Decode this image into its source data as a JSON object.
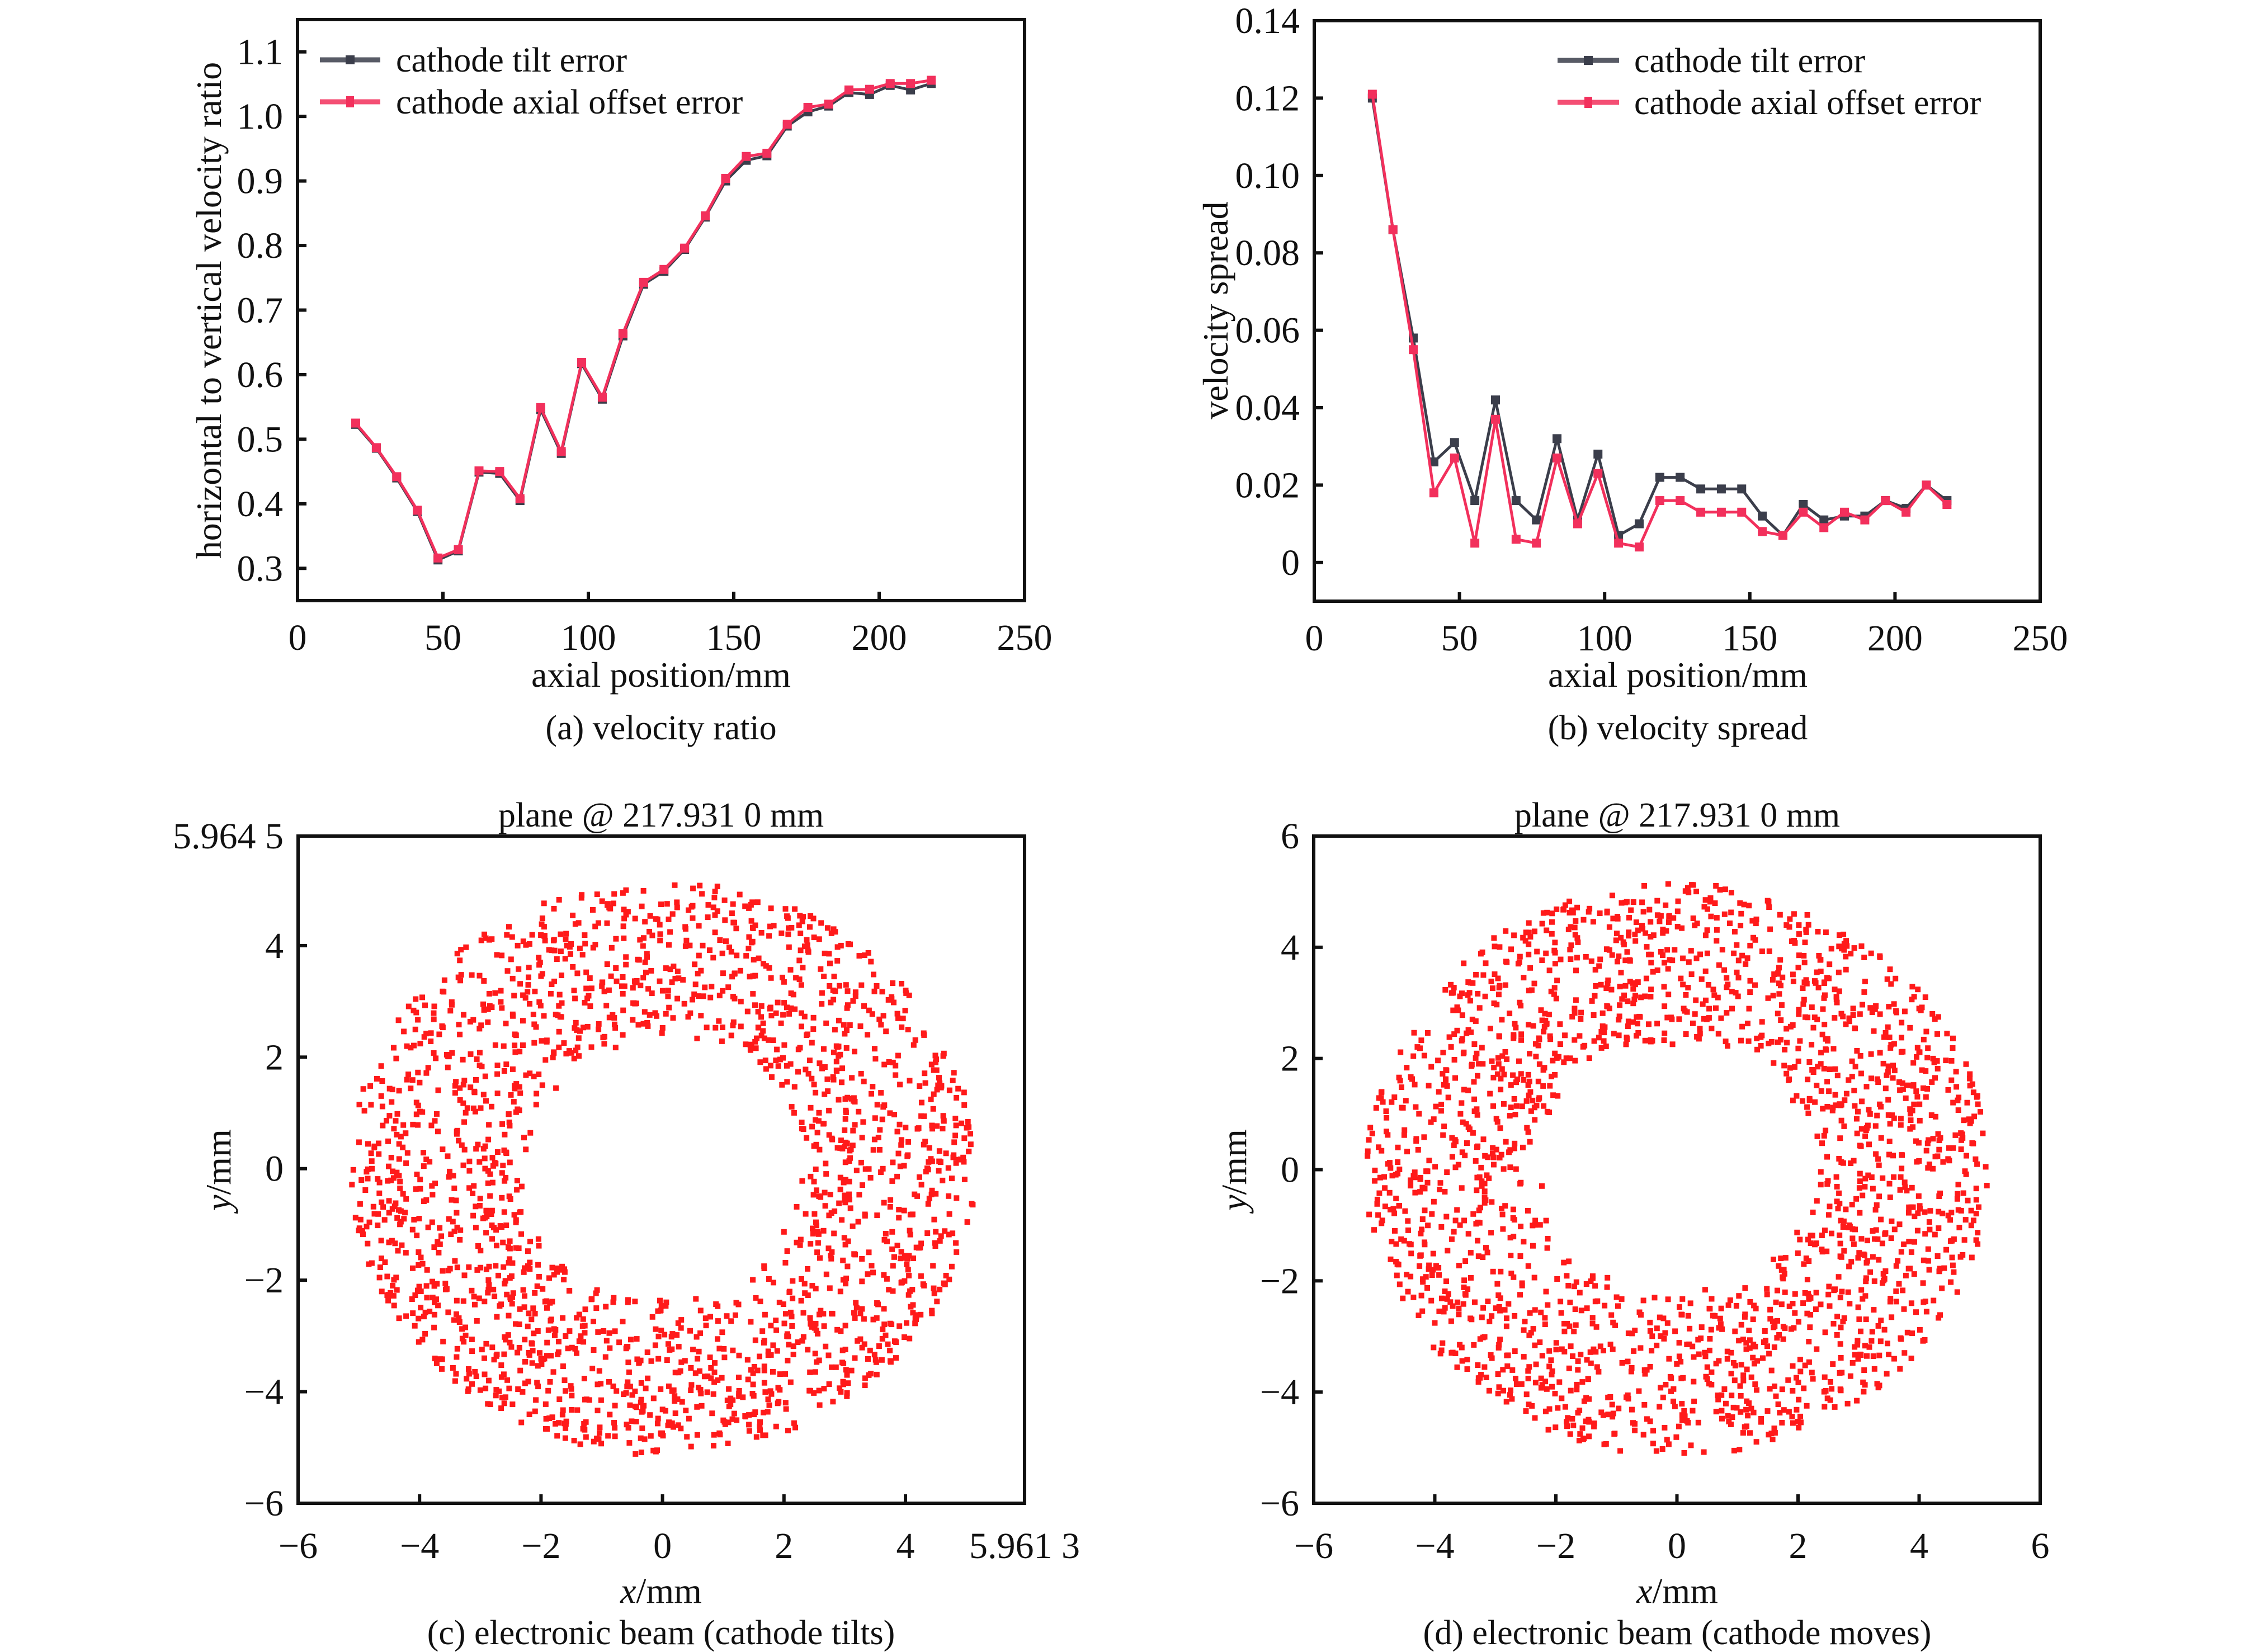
{
  "colors": {
    "tilt": "#3b3e4b",
    "offset": "#f2305c",
    "scatter": "#ff1a1a",
    "axis": "#111111"
  },
  "chart_data": [
    {
      "id": "a",
      "type": "line",
      "caption": "(a) velocity ratio",
      "title": "",
      "xlabel": "axial position/mm",
      "ylabel": "horizontal to vertical velocity ratio",
      "xlim": [
        0,
        250
      ],
      "ylim": [
        0.25,
        1.15
      ],
      "xticks": [
        0,
        50,
        100,
        150,
        200,
        250
      ],
      "xtick_labels": [
        "0",
        "50",
        "100",
        "150",
        "200",
        "250"
      ],
      "yticks": [
        0.3,
        0.4,
        0.5,
        0.6,
        0.7,
        0.8,
        0.9,
        1.0,
        1.1
      ],
      "ytick_labels": [
        "0.3",
        "0.4",
        "0.5",
        "0.6",
        "0.7",
        "0.8",
        "0.9",
        "1.0",
        "1.1"
      ],
      "grid": false,
      "legend_position": "top-left",
      "x": [
        20,
        27.1,
        34.1,
        41.2,
        48.3,
        55.3,
        62.4,
        69.5,
        76.5,
        83.6,
        90.7,
        97.7,
        104.8,
        111.9,
        119.0,
        126.0,
        133.1,
        140.2,
        147.2,
        154.3,
        161.4,
        168.4,
        175.5,
        182.6,
        189.6,
        196.7,
        203.8,
        210.8,
        217.9
      ],
      "series": [
        {
          "name": "cathode tilt error",
          "color_key": "tilt",
          "values": [
            0.523,
            0.486,
            0.44,
            0.388,
            0.313,
            0.327,
            0.449,
            0.447,
            0.405,
            0.546,
            0.478,
            0.617,
            0.562,
            0.66,
            0.74,
            0.76,
            0.794,
            0.844,
            0.9,
            0.932,
            0.939,
            0.985,
            1.007,
            1.016,
            1.037,
            1.034,
            1.048,
            1.041,
            1.051
          ]
        },
        {
          "name": "cathode axial offset error",
          "color_key": "offset",
          "values": [
            0.525,
            0.487,
            0.442,
            0.39,
            0.316,
            0.329,
            0.451,
            0.45,
            0.408,
            0.549,
            0.481,
            0.619,
            0.565,
            0.664,
            0.743,
            0.763,
            0.796,
            0.846,
            0.904,
            0.938,
            0.943,
            0.988,
            1.014,
            1.019,
            1.041,
            1.042,
            1.051,
            1.051,
            1.056
          ]
        }
      ]
    },
    {
      "id": "b",
      "type": "line",
      "caption": "(b) velocity spread",
      "title": "",
      "xlabel": "axial position/mm",
      "ylabel": "velocity spread",
      "xlim": [
        0,
        250
      ],
      "ylim": [
        -0.01,
        0.14
      ],
      "xticks": [
        0,
        50,
        100,
        150,
        200,
        250
      ],
      "xtick_labels": [
        "0",
        "50",
        "100",
        "150",
        "200",
        "250"
      ],
      "yticks": [
        0,
        0.02,
        0.04,
        0.06,
        0.08,
        0.1,
        0.12,
        0.14
      ],
      "ytick_labels": [
        "0",
        "0.02",
        "0.04",
        "0.06",
        "0.08",
        "0.10",
        "0.12",
        "0.14"
      ],
      "grid": false,
      "legend_position": "top-right",
      "x": [
        20,
        27.1,
        34.1,
        41.2,
        48.3,
        55.3,
        62.4,
        69.5,
        76.5,
        83.6,
        90.7,
        97.7,
        104.8,
        111.9,
        119.0,
        126.0,
        133.1,
        140.2,
        147.2,
        154.3,
        161.4,
        168.4,
        175.5,
        182.6,
        189.6,
        196.7,
        203.8,
        210.8,
        217.9
      ],
      "series": [
        {
          "name": "cathode tilt error",
          "color_key": "tilt",
          "values": [
            0.12,
            0.086,
            0.058,
            0.026,
            0.031,
            0.016,
            0.042,
            0.016,
            0.011,
            0.032,
            0.011,
            0.028,
            0.007,
            0.01,
            0.022,
            0.022,
            0.019,
            0.019,
            0.019,
            0.012,
            0.007,
            0.015,
            0.011,
            0.012,
            0.012,
            0.016,
            0.014,
            0.02,
            0.016
          ]
        },
        {
          "name": "cathode axial offset error",
          "color_key": "offset",
          "values": [
            0.121,
            0.086,
            0.055,
            0.018,
            0.027,
            0.005,
            0.037,
            0.006,
            0.005,
            0.027,
            0.01,
            0.023,
            0.005,
            0.004,
            0.016,
            0.016,
            0.013,
            0.013,
            0.013,
            0.008,
            0.007,
            0.013,
            0.009,
            0.013,
            0.011,
            0.016,
            0.013,
            0.02,
            0.015
          ]
        }
      ]
    },
    {
      "id": "c",
      "type": "scatter",
      "caption": "(c) electronic beam (cathode tilts)",
      "title": "plane @ 217.931 0 mm",
      "xlabel_italic": "x",
      "xlabel_rest": "/mm",
      "ylabel_italic": "y",
      "ylabel_rest": "/mm",
      "xlim": [
        -6,
        5.9613
      ],
      "ylim": [
        -6,
        5.9645
      ],
      "xticks": [
        -6,
        -4,
        -2,
        0,
        2,
        4,
        5.9613
      ],
      "xtick_labels": [
        "−6",
        "−4",
        "−2",
        "0",
        "2",
        "4",
        "5.961 3"
      ],
      "yticks": [
        -6,
        -4,
        -2,
        0,
        2,
        4,
        5.9645
      ],
      "ytick_labels": [
        "−6",
        "−4",
        "−2",
        "0",
        "2",
        "4",
        "5.964 5"
      ],
      "grid": false,
      "distribution": {
        "shape": "annulus",
        "center": [
          0.0,
          0.0
        ],
        "inner_radius_mm": 2.4,
        "outer_radius_mm": 5.15,
        "approx_points": 2000,
        "seed": 17
      }
    },
    {
      "id": "d",
      "type": "scatter",
      "caption": "(d) electronic beam (cathode moves)",
      "title": "plane @ 217.931 0 mm",
      "xlabel_italic": "x",
      "xlabel_rest": "/mm",
      "ylabel_italic": "y",
      "ylabel_rest": "/mm",
      "xlim": [
        -6,
        6
      ],
      "ylim": [
        -6,
        6
      ],
      "xticks": [
        -6,
        -4,
        -2,
        0,
        2,
        4,
        6
      ],
      "xtick_labels": [
        "−6",
        "−4",
        "−2",
        "0",
        "2",
        "4",
        "6"
      ],
      "yticks": [
        -6,
        -4,
        -2,
        0,
        2,
        4,
        6
      ],
      "ytick_labels": [
        "−6",
        "−4",
        "−2",
        "0",
        "2",
        "4",
        "6"
      ],
      "grid": false,
      "distribution": {
        "shape": "annulus",
        "center": [
          0.0,
          0.0
        ],
        "inner_radius_mm": 2.35,
        "outer_radius_mm": 5.15,
        "approx_points": 2000,
        "seed": 41
      }
    }
  ]
}
